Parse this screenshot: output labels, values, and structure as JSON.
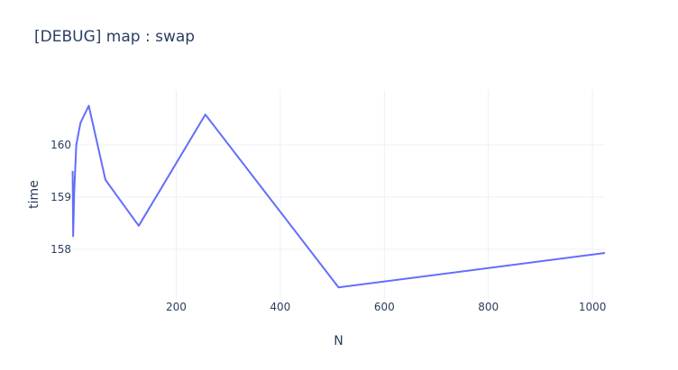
{
  "chart_data": {
    "type": "line",
    "title": "[DEBUG] map : swap",
    "xlabel": "N",
    "ylabel": "time",
    "xlim": [
      0,
      1024
    ],
    "ylim": [
      157.05,
      161.05
    ],
    "x_ticks": [
      200,
      400,
      600,
      800,
      1000
    ],
    "y_ticks": [
      158,
      159,
      160
    ],
    "grid": true,
    "colors": {
      "series": "#636efa",
      "grid": "#ebf0f8",
      "text": "#2a3f5f"
    },
    "series": [
      {
        "x": [
          1,
          2,
          4,
          8,
          16,
          32,
          64,
          128,
          256,
          512,
          1024
        ],
        "y": [
          159.5,
          158.25,
          159.1,
          160.0,
          160.42,
          160.75,
          159.33,
          158.45,
          160.58,
          157.27,
          157.93
        ]
      }
    ]
  }
}
